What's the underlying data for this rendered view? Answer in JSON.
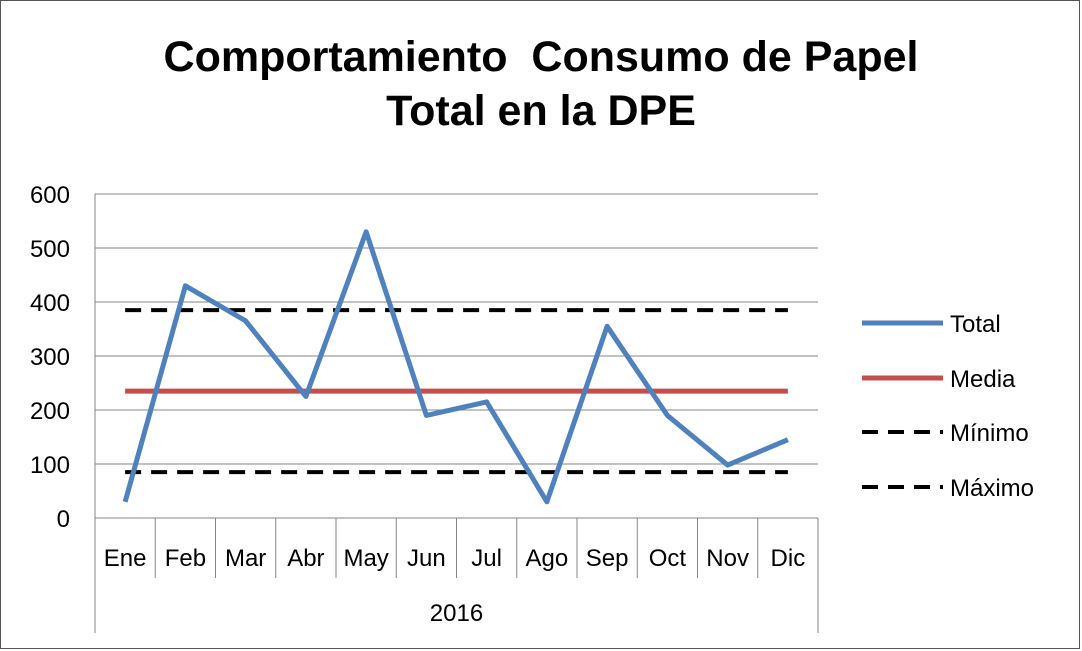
{
  "chart_data": {
    "type": "line",
    "title_lines": [
      "Comportamiento  Consumo de Papel",
      "Total en la DPE"
    ],
    "categories": [
      "Ene",
      "Feb",
      "Mar",
      "Abr",
      "May",
      "Jun",
      "Jul",
      "Ago",
      "Sep",
      "Oct",
      "Nov",
      "Dic"
    ],
    "group_label": "2016",
    "yticks": [
      "0",
      "100",
      "200",
      "300",
      "400",
      "500",
      "600"
    ],
    "ylim": [
      0,
      600
    ],
    "grid": true,
    "legend_position": "right",
    "series": [
      {
        "name": "Total",
        "color": "#4f81bd",
        "style": "solid",
        "values": [
          30,
          430,
          365,
          225,
          530,
          190,
          215,
          30,
          355,
          190,
          98,
          145
        ]
      },
      {
        "name": "Media",
        "color": "#c0504d",
        "style": "solid",
        "values": [
          235,
          235,
          235,
          235,
          235,
          235,
          235,
          235,
          235,
          235,
          235,
          235
        ]
      },
      {
        "name": "Mínimo",
        "color": "#000000",
        "style": "dashed",
        "values": [
          85,
          85,
          85,
          85,
          85,
          85,
          85,
          85,
          85,
          85,
          85,
          85
        ]
      },
      {
        "name": "Máximo",
        "color": "#000000",
        "style": "dashed",
        "values": [
          385,
          385,
          385,
          385,
          385,
          385,
          385,
          385,
          385,
          385,
          385,
          385
        ]
      }
    ]
  }
}
